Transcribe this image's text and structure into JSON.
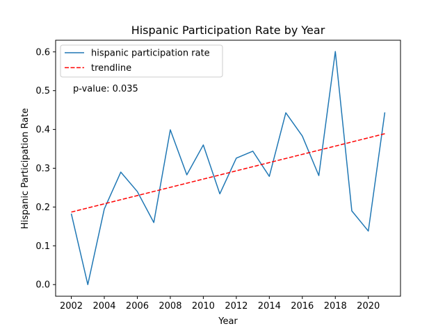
{
  "chart_data": {
    "type": "line",
    "title": "Hispanic Participation Rate by Year",
    "xlabel": "Year",
    "ylabel": "Hispanic Participation Rate",
    "xlim": [
      2001.05,
      2021.95
    ],
    "ylim": [
      -0.03,
      0.63
    ],
    "xticks": [
      2002,
      2004,
      2006,
      2008,
      2010,
      2012,
      2014,
      2016,
      2018,
      2020
    ],
    "yticks": [
      0.0,
      0.1,
      0.2,
      0.3,
      0.4,
      0.5,
      0.6
    ],
    "ytick_labels": [
      "0.0",
      "0.1",
      "0.2",
      "0.3",
      "0.4",
      "0.5",
      "0.6"
    ],
    "grid": false,
    "legend_placement": "top-left",
    "x": [
      2002,
      2003,
      2004,
      2005,
      2006,
      2007,
      2008,
      2009,
      2010,
      2011,
      2012,
      2013,
      2014,
      2015,
      2016,
      2017,
      2018,
      2019,
      2020,
      2021
    ],
    "series": [
      {
        "name": "hispanic participation rate",
        "style": "solid",
        "color": "#1f77b4",
        "values": [
          0.183,
          0.0,
          0.195,
          0.29,
          0.24,
          0.16,
          0.399,
          0.283,
          0.36,
          0.234,
          0.326,
          0.344,
          0.279,
          0.443,
          0.383,
          0.281,
          0.601,
          0.19,
          0.138,
          0.444
        ]
      },
      {
        "name": "trendline",
        "style": "dashed",
        "color": "#ff0000",
        "x": [
          2002,
          2021
        ],
        "values": [
          0.187,
          0.389
        ]
      }
    ],
    "annotations": [
      {
        "text": "p-value: 0.035"
      }
    ]
  }
}
